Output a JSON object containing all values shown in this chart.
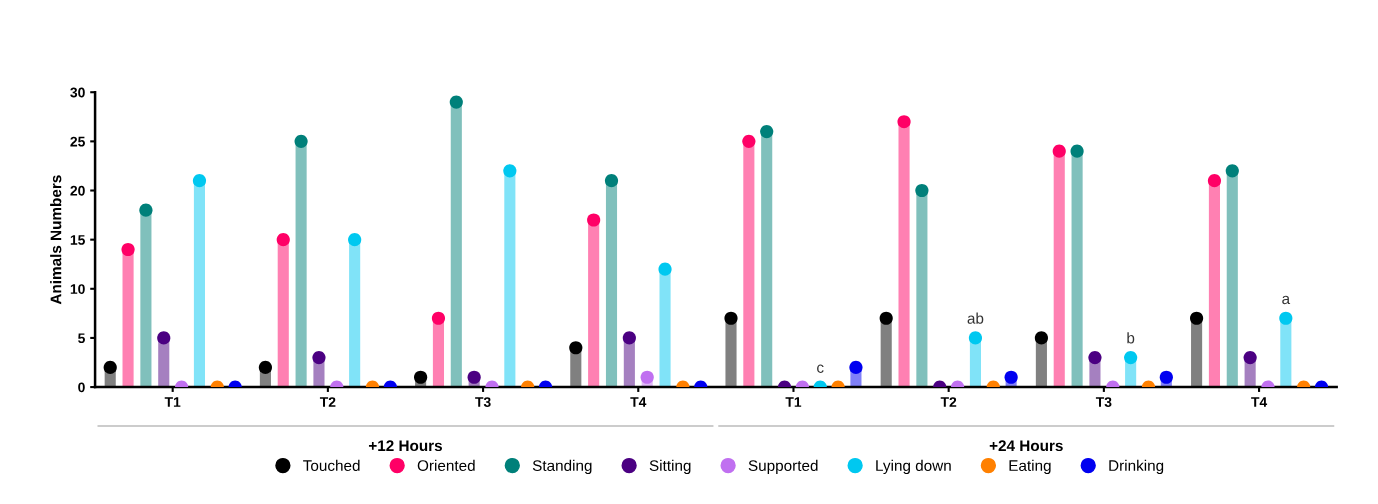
{
  "chart_data": {
    "type": "lollipop",
    "ylabel": "Animals Numbers",
    "categories": [
      "T1",
      "T2",
      "T3",
      "T4",
      "T1",
      "T2",
      "T3",
      "T4"
    ],
    "series": [
      {
        "name": "Touched",
        "color": "#000000",
        "values": [
          2,
          2,
          1,
          4,
          7,
          7,
          5,
          7
        ]
      },
      {
        "name": "Oriented",
        "color": "#ff0066",
        "values": [
          14,
          15,
          7,
          17,
          25,
          27,
          24,
          21
        ]
      },
      {
        "name": "Standing",
        "color": "#00807a",
        "values": [
          18,
          25,
          29,
          21,
          26,
          20,
          24,
          22
        ]
      },
      {
        "name": "Sitting",
        "color": "#4b0082",
        "values": [
          5,
          3,
          1,
          5,
          0,
          0,
          3,
          3
        ]
      },
      {
        "name": "Supported",
        "color": "#c070f0",
        "values": [
          0,
          0,
          0,
          1,
          0,
          0,
          0,
          0
        ]
      },
      {
        "name": "Lying down",
        "color": "#00c8f0",
        "values": [
          21,
          15,
          22,
          12,
          0,
          5,
          3,
          7
        ],
        "value_labels": [
          null,
          null,
          null,
          null,
          "c",
          "ab",
          "b",
          "a"
        ]
      },
      {
        "name": "Eating",
        "color": "#ff8000",
        "values": [
          0,
          0,
          0,
          0,
          0,
          0,
          0,
          0
        ]
      },
      {
        "name": "Drinking",
        "color": "#0000f0",
        "values": [
          0,
          0,
          0,
          0,
          2,
          1,
          1,
          0
        ]
      }
    ],
    "ylim": [
      0,
      30
    ],
    "yticks": [
      0,
      5,
      10,
      15,
      20,
      25,
      30
    ],
    "annotations": [
      "+12 Hours",
      "+24 Hours"
    ],
    "legend": "bottom",
    "marker": "circle",
    "grid": false
  }
}
